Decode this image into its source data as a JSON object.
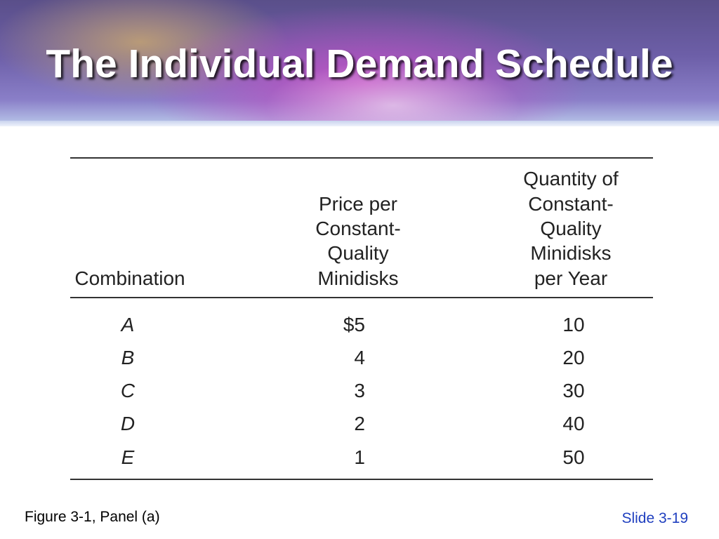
{
  "header": {
    "title": "The Individual Demand Schedule"
  },
  "table": {
    "headers": [
      [
        "Combination"
      ],
      [
        "Price per",
        "Constant-",
        "Quality",
        "Minidisks"
      ],
      [
        "Quantity of",
        "Constant-",
        "Quality",
        "Minidisks",
        "per Year"
      ]
    ],
    "rows": [
      [
        "A",
        "$5",
        "10"
      ],
      [
        "B",
        "4",
        "20"
      ],
      [
        "C",
        "3",
        "30"
      ],
      [
        "D",
        "2",
        "40"
      ],
      [
        "E",
        "1",
        "50"
      ]
    ]
  },
  "footer": {
    "figure": "Figure 3-1, Panel (a)",
    "slide": "Slide 3-19"
  }
}
